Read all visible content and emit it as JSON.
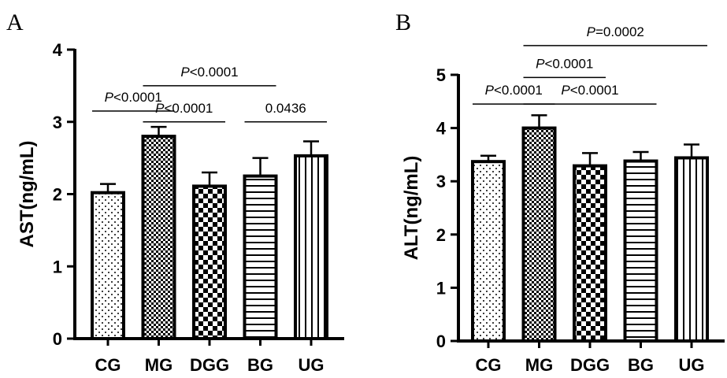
{
  "chart_data": [
    {
      "panel": "A",
      "type": "bar",
      "ylabel": "AST(ng/mL)",
      "xlabel": "",
      "ylim": [
        0,
        4
      ],
      "yticks": [
        0,
        1,
        2,
        3,
        4
      ],
      "categories": [
        "CG",
        "MG",
        "DGG",
        "BG",
        "UG"
      ],
      "values": [
        2.02,
        2.8,
        2.11,
        2.25,
        2.53
      ],
      "errors": [
        0.12,
        0.13,
        0.19,
        0.25,
        0.2
      ],
      "patterns": [
        "dots",
        "fine-check",
        "checker",
        "horizontal-lines",
        "vertical-lines"
      ],
      "comparisons": [
        {
          "from": 0,
          "to": 1,
          "text": "<0.0001",
          "p_italic": true,
          "level": 3.15
        },
        {
          "from": 1,
          "to": 2,
          "text": "<0.0001",
          "p_italic": true,
          "level": 3.0
        },
        {
          "from": 1,
          "to": 3,
          "text": "<0.0001",
          "p_italic": true,
          "level": 3.5
        },
        {
          "from": 3,
          "to": 4,
          "text": "0.0436",
          "p_italic": false,
          "level": 3.0
        }
      ]
    },
    {
      "panel": "B",
      "type": "bar",
      "ylabel": "ALT(ng/mL)",
      "xlabel": "",
      "ylim": [
        0,
        5
      ],
      "yticks": [
        0,
        1,
        2,
        3,
        4,
        5
      ],
      "categories": [
        "CG",
        "MG",
        "DGG",
        "BG",
        "UG"
      ],
      "values": [
        3.37,
        4.0,
        3.29,
        3.38,
        3.44
      ],
      "errors": [
        0.11,
        0.24,
        0.24,
        0.17,
        0.25
      ],
      "patterns": [
        "dots",
        "fine-check",
        "checker",
        "horizontal-lines",
        "vertical-lines"
      ],
      "comparisons": [
        {
          "from": 0,
          "to": 1,
          "text": "<0.0001",
          "p_italic": true,
          "level": 4.45
        },
        {
          "from": 1,
          "to": 2,
          "text": "<0.0001",
          "p_italic": true,
          "level": 4.95
        },
        {
          "from": 1,
          "to": 3,
          "text": "<0.0001",
          "p_italic": true,
          "level": 4.45
        },
        {
          "from": 1,
          "to": 4,
          "text": "=0.0002",
          "p_italic": true,
          "level": 5.55
        }
      ]
    }
  ]
}
